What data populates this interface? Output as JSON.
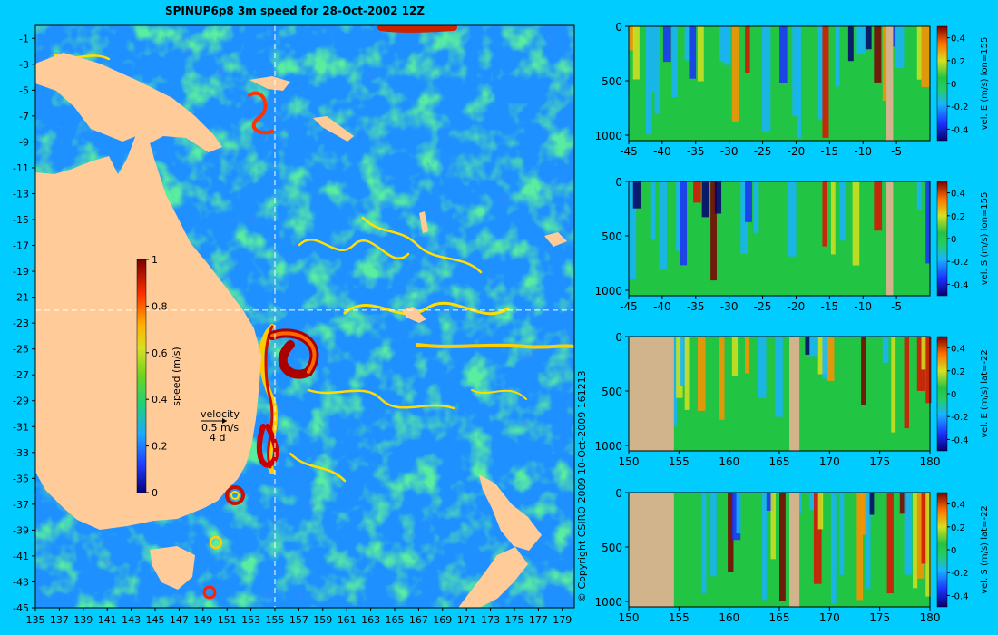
{
  "title": "SPINUP6p8 3m speed for 28-Oct-2002 12Z",
  "copyright": "© Copyright CSIRO 2009  10-Oct-2009 161213",
  "map": {
    "x_ticks": [
      "135",
      "137",
      "139",
      "141",
      "143",
      "145",
      "147",
      "149",
      "151",
      "153",
      "155",
      "157",
      "159",
      "161",
      "163",
      "165",
      "167",
      "169",
      "171",
      "173",
      "175",
      "177",
      "179"
    ],
    "y_ticks": [
      "-1",
      "-3",
      "-5",
      "-7",
      "-9",
      "-11",
      "-13",
      "-15",
      "-17",
      "-19",
      "-21",
      "-23",
      "-25",
      "-27",
      "-29",
      "-31",
      "-33",
      "-35",
      "-37",
      "-39",
      "-41",
      "-43",
      "-45"
    ],
    "lon_range": [
      135,
      180
    ],
    "lat_range": [
      -45,
      0
    ],
    "section_lon": 155,
    "section_lat": -22,
    "colorbar": {
      "label": "speed (m/s)",
      "ticks": [
        "1",
        "0.8",
        "0.6",
        "0.4",
        "0.2",
        "0"
      ],
      "range": [
        0,
        1
      ]
    },
    "velocity_key": {
      "title": "velocity",
      "value": "0.5 m/s",
      "time": "4 d"
    },
    "colors": {
      "ocean": "#1e90ff",
      "land": "#ffcc99",
      "background": "#00ccff"
    }
  },
  "panels": [
    {
      "label": "vel. E (m/s) lon=155",
      "x_ticks": [
        "-45",
        "-40",
        "-35",
        "-30",
        "-25",
        "-20",
        "-15",
        "-10",
        "-5"
      ],
      "x_range": [
        -45,
        0
      ],
      "y_ticks": [
        "0",
        "500",
        "1000"
      ],
      "y_range": [
        0,
        1050
      ],
      "cbar_ticks": [
        "0.4",
        "0.2",
        "0",
        "-0.2",
        "-0.4"
      ],
      "land": [
        [
          -6.5,
          -5.5
        ]
      ]
    },
    {
      "label": "vel. S (m/s) lon=155",
      "x_ticks": [
        "-45",
        "-40",
        "-35",
        "-30",
        "-25",
        "-20",
        "-15",
        "-10",
        "-5"
      ],
      "x_range": [
        -45,
        0
      ],
      "y_ticks": [
        "0",
        "500",
        "1000"
      ],
      "y_range": [
        0,
        1050
      ],
      "cbar_ticks": [
        "0.4",
        "0.2",
        "0",
        "-0.2",
        "-0.4"
      ],
      "land": [
        [
          -6.5,
          -5.5
        ]
      ]
    },
    {
      "label": "vel. E (m/s) lat=-22",
      "x_ticks": [
        "150",
        "155",
        "160",
        "165",
        "170",
        "175",
        "180"
      ],
      "x_range": [
        150,
        180
      ],
      "y_ticks": [
        "0",
        "500",
        "1000"
      ],
      "y_range": [
        0,
        1050
      ],
      "cbar_ticks": [
        "0.4",
        "0.2",
        "0",
        "-0.2",
        "-0.4"
      ],
      "land": [
        [
          150,
          154.5
        ],
        [
          166,
          167
        ]
      ]
    },
    {
      "label": "vel. S (m/s) lat=-22",
      "x_ticks": [
        "150",
        "155",
        "160",
        "165",
        "170",
        "175",
        "180"
      ],
      "x_range": [
        150,
        180
      ],
      "y_ticks": [
        "0",
        "500",
        "1000"
      ],
      "y_range": [
        0,
        1050
      ],
      "cbar_ticks": [
        "0.4",
        "0.2",
        "0",
        "-0.2",
        "-0.4"
      ],
      "land": [
        [
          150,
          154.5
        ],
        [
          166,
          167
        ]
      ]
    }
  ],
  "chart_data": {
    "type": "heatmap",
    "title": "SPINUP6p8 3m speed for 28-Oct-2002 12Z",
    "xlim": [
      135,
      180
    ],
    "ylim": [
      -45,
      0
    ],
    "colorbar_label": "speed (m/s)",
    "colorbar_range": [
      0,
      1
    ],
    "sections": [
      {
        "variable": "vel. E (m/s)",
        "at": "lon=155",
        "x": "latitude",
        "xlim": [
          -45,
          0
        ],
        "ylim": [
          0,
          1050
        ]
      },
      {
        "variable": "vel. S (m/s)",
        "at": "lon=155",
        "x": "latitude",
        "xlim": [
          -45,
          0
        ],
        "ylim": [
          0,
          1050
        ]
      },
      {
        "variable": "vel. E (m/s)",
        "at": "lat=-22",
        "x": "longitude",
        "xlim": [
          150,
          180
        ],
        "ylim": [
          0,
          1050
        ]
      },
      {
        "variable": "vel. S (m/s)",
        "at": "lat=-22",
        "x": "longitude",
        "xlim": [
          150,
          180
        ],
        "ylim": [
          0,
          1050
        ]
      }
    ]
  }
}
